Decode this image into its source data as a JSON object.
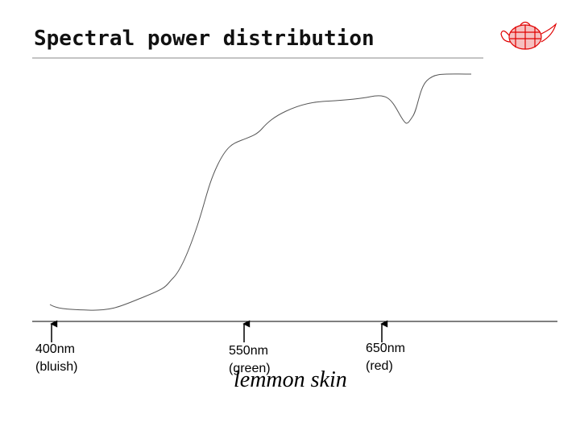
{
  "title": "Spectral power distribution",
  "markers": [
    {
      "wavelength": "400nm",
      "color": "(bluish)"
    },
    {
      "wavelength": "550nm",
      "color": "(green)"
    },
    {
      "wavelength": "650nm",
      "color": "(red)"
    }
  ],
  "caption": "lemmon skin"
}
